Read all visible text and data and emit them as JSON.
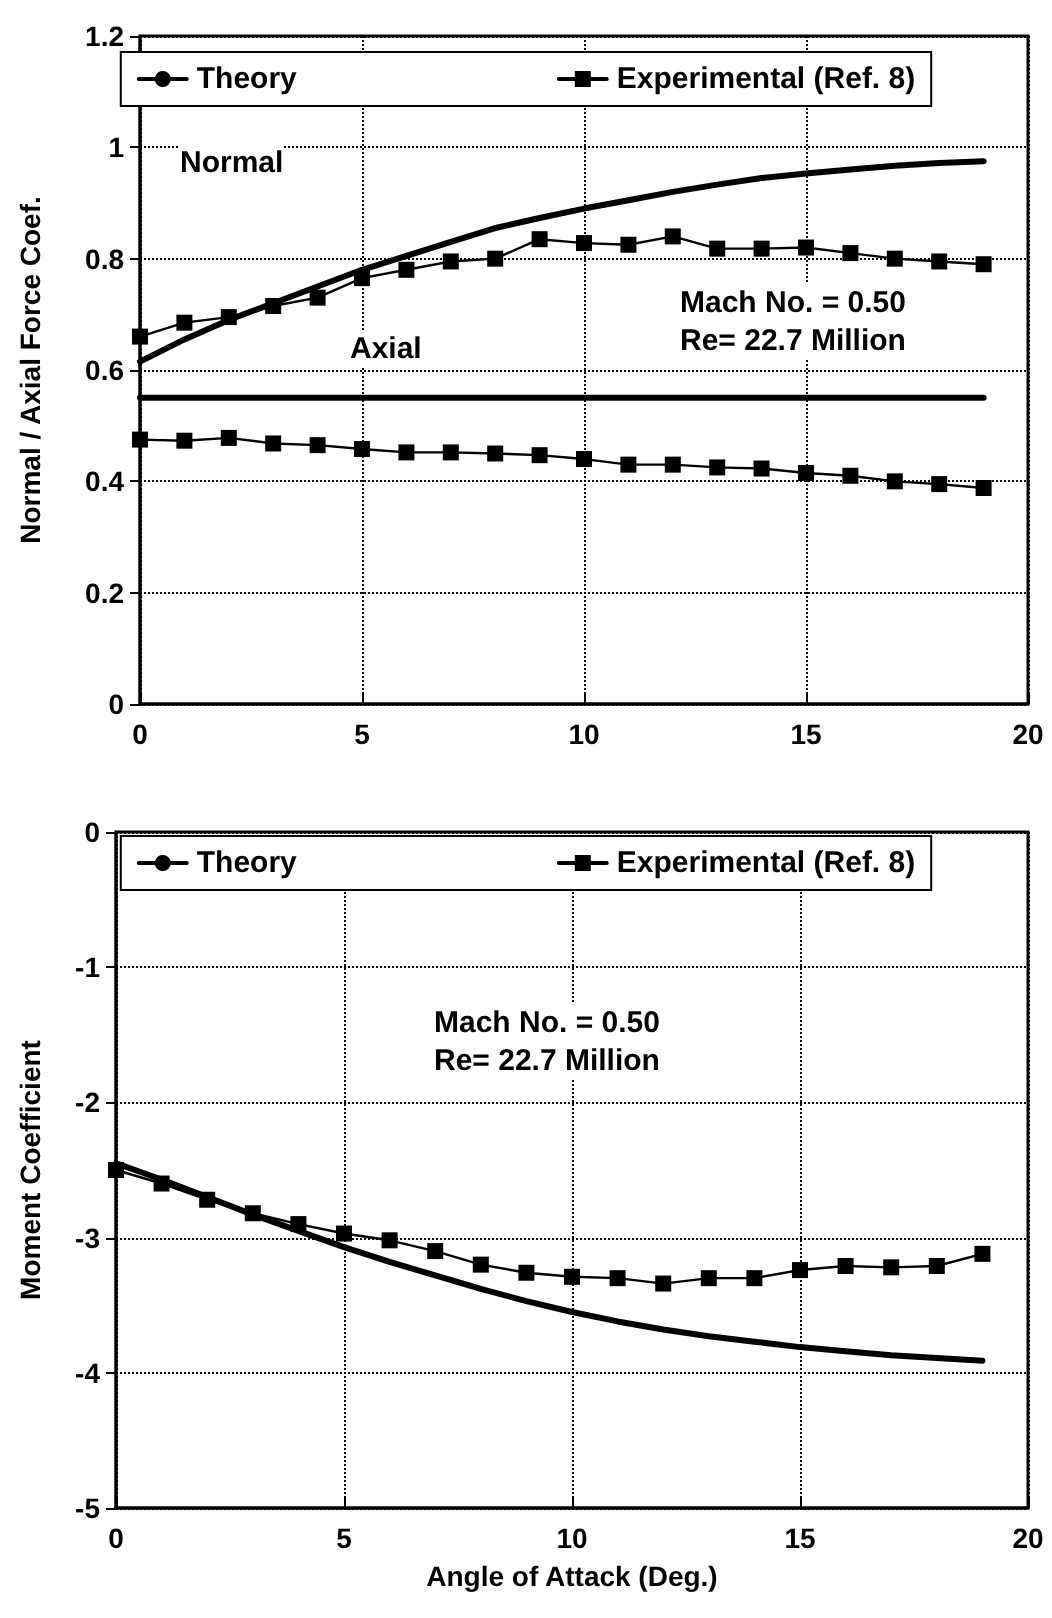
{
  "chart_data": [
    {
      "type": "line",
      "ylabel": "Normal / Axial Force Coef.",
      "x": [
        0,
        1,
        2,
        3,
        4,
        5,
        6,
        7,
        8,
        9,
        10,
        11,
        12,
        13,
        14,
        15,
        16,
        17,
        18,
        19
      ],
      "xlim": [
        0,
        20
      ],
      "xticks": [
        0,
        5,
        10,
        15,
        20
      ],
      "ylim": [
        0,
        1.2
      ],
      "yticks": [
        0,
        0.2,
        0.4,
        0.6,
        0.8,
        1,
        1.2
      ],
      "grid": true,
      "legend": "top",
      "line_style": "solid",
      "annotations": [
        "Normal",
        "Axial",
        "Mach No. = 0.50\nRe= 22.7 Million"
      ],
      "series": [
        {
          "name": "Theory",
          "color": "#000000",
          "marker": "none",
          "values": [
            0.615,
            0.655,
            0.69,
            0.72,
            0.75,
            0.78,
            0.805,
            0.83,
            0.855,
            0.873,
            0.89,
            0.905,
            0.92,
            0.933,
            0.945,
            0.953,
            0.96,
            0.967,
            0.972,
            0.975
          ]
        },
        {
          "name": "Experimental (Ref. 8)",
          "color": "#000000",
          "marker": "square",
          "values": [
            0.66,
            0.685,
            0.695,
            0.715,
            0.73,
            0.765,
            0.78,
            0.795,
            0.8,
            0.835,
            0.828,
            0.825,
            0.84,
            0.818,
            0.818,
            0.82,
            0.81,
            0.8,
            0.795,
            0.79
          ]
        },
        {
          "color": "#000000",
          "marker": "none",
          "x": [
            0,
            19
          ],
          "values": [
            0.55,
            0.55
          ]
        },
        {
          "color": "#000000",
          "marker": "square",
          "values": [
            0.475,
            0.473,
            0.478,
            0.468,
            0.465,
            0.458,
            0.452,
            0.452,
            0.45,
            0.447,
            0.44,
            0.43,
            0.43,
            0.425,
            0.423,
            0.415,
            0.41,
            0.4,
            0.395,
            0.388
          ]
        }
      ]
    },
    {
      "type": "line",
      "xlabel": "Angle of Attack (Deg.)",
      "ylabel": "Moment Coefficient",
      "x": [
        0,
        1,
        2,
        3,
        4,
        5,
        6,
        7,
        8,
        9,
        10,
        11,
        12,
        13,
        14,
        15,
        16,
        17,
        18,
        19
      ],
      "xlim": [
        0,
        20
      ],
      "xticks": [
        0,
        5,
        10,
        15,
        20
      ],
      "ylim": [
        -5,
        0
      ],
      "yticks": [
        -5,
        -4,
        -3,
        -2,
        -1,
        0
      ],
      "grid": true,
      "legend": "top",
      "line_style": "solid",
      "annotations": [
        "Mach No. = 0.50\nRe= 22.7 Million"
      ],
      "series": [
        {
          "name": "Theory",
          "color": "#000000",
          "marker": "none",
          "values": [
            -2.45,
            -2.57,
            -2.7,
            -2.83,
            -2.95,
            -3.07,
            -3.18,
            -3.28,
            -3.38,
            -3.47,
            -3.55,
            -3.62,
            -3.68,
            -3.73,
            -3.77,
            -3.81,
            -3.84,
            -3.87,
            -3.89,
            -3.91
          ]
        },
        {
          "name": "Experimental (Ref. 8)",
          "color": "#000000",
          "marker": "square",
          "values": [
            -2.5,
            -2.6,
            -2.72,
            -2.82,
            -2.9,
            -2.97,
            -3.02,
            -3.1,
            -3.2,
            -3.26,
            -3.29,
            -3.3,
            -3.34,
            -3.3,
            -3.3,
            -3.24,
            -3.21,
            -3.22,
            -3.21,
            -3.12
          ]
        }
      ]
    }
  ]
}
